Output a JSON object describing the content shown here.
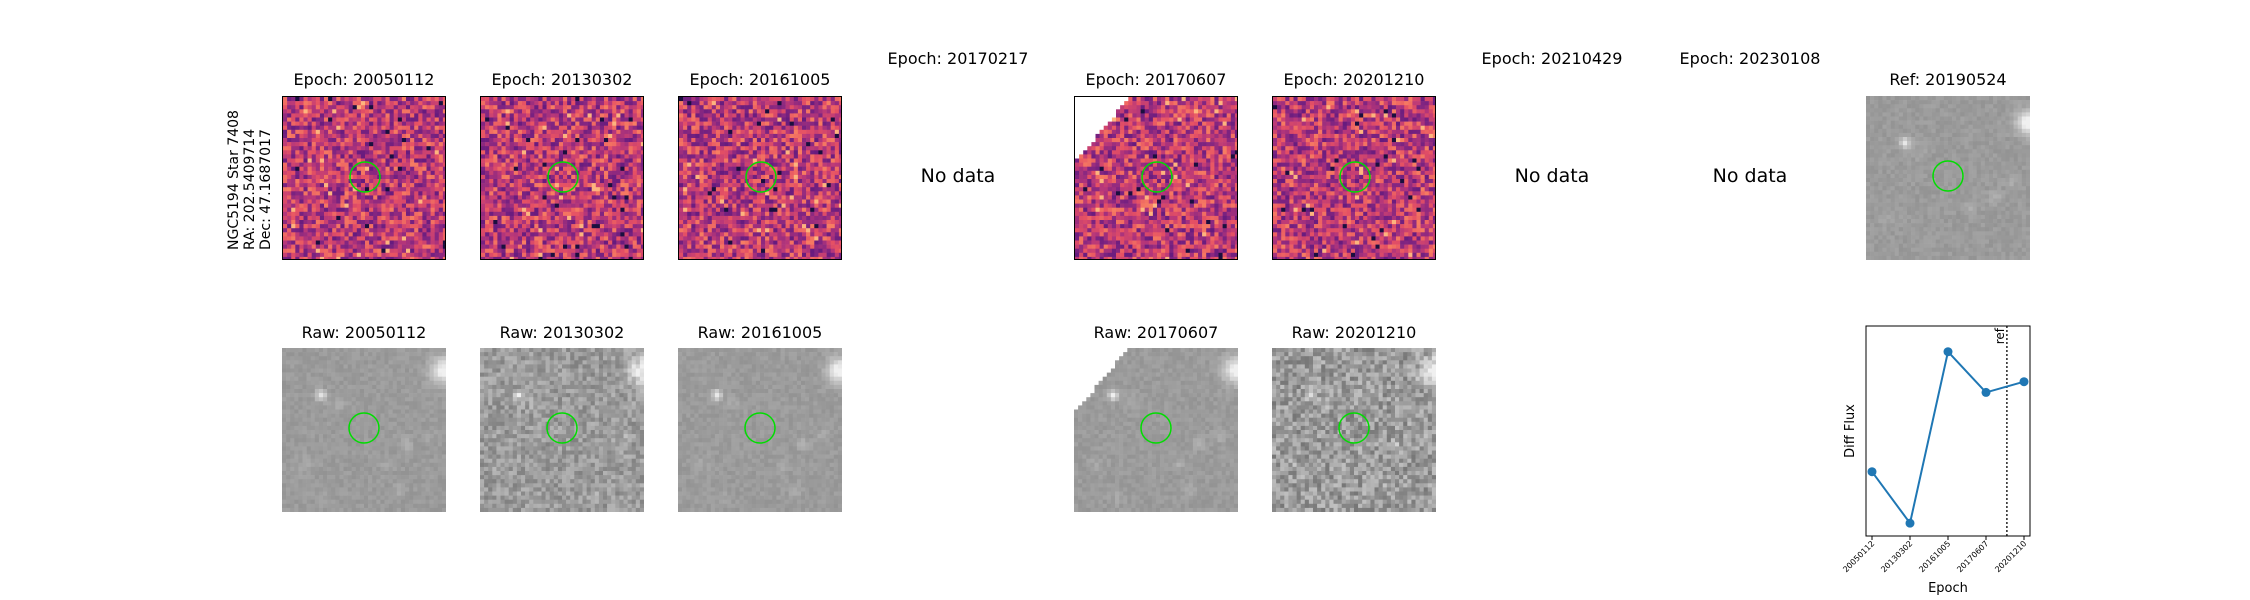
{
  "star_label": {
    "line1": "NGC5194 Star 7408",
    "line2": "RA: 202.5409714",
    "line3": "Dec: 47.1687017"
  },
  "diff_row": [
    {
      "title": "Epoch: 20050112",
      "has_data": true,
      "seed": 11,
      "blank_corner": false
    },
    {
      "title": "Epoch: 20130302",
      "has_data": true,
      "seed": 23,
      "blank_corner": false
    },
    {
      "title": "Epoch: 20161005",
      "has_data": true,
      "seed": 37,
      "blank_corner": false
    },
    {
      "title": "Epoch: 20170217",
      "has_data": false,
      "no_data_text": "No data"
    },
    {
      "title": "Epoch: 20170607",
      "has_data": true,
      "seed": 41,
      "blank_corner": true
    },
    {
      "title": "Epoch: 20201210",
      "has_data": true,
      "seed": 53,
      "blank_corner": false
    },
    {
      "title": "Epoch: 20210429",
      "has_data": false,
      "no_data_text": "No data"
    },
    {
      "title": "Epoch: 20230108",
      "has_data": false,
      "no_data_text": "No data"
    }
  ],
  "ref": {
    "title": "Ref: 20190524"
  },
  "raw_row": [
    {
      "title": "Raw: 20050112",
      "seed": 5,
      "noise": 0.05,
      "blank_corner": false
    },
    {
      "title": "Raw: 20130302",
      "seed": 7,
      "noise": 0.16,
      "blank_corner": false
    },
    {
      "title": "Raw: 20161005",
      "seed": 9,
      "noise": 0.05,
      "blank_corner": false
    },
    {
      "title": "Raw: 20170607",
      "seed": 13,
      "noise": 0.05,
      "blank_corner": true
    },
    {
      "title": "Raw: 20201210",
      "seed": 17,
      "noise": 0.22,
      "blank_corner": false
    }
  ],
  "colors": {
    "circle": "#00dd00",
    "line": "#1f77b4",
    "frame": "#000000"
  },
  "chart_data": {
    "type": "line",
    "x": [
      "20050112",
      "20130302",
      "20161005",
      "20170607",
      "20201210"
    ],
    "y": [
      -1.0,
      -2.2,
      1.8,
      0.85,
      1.1
    ],
    "ylim": [
      -2.5,
      2.4
    ],
    "xlabel": "Epoch",
    "ylabel": "Diff Flux",
    "ref_marker": {
      "label": "ref",
      "position_between": [
        "20170607",
        "20201210"
      ],
      "fraction": 0.55
    },
    "grid": false
  }
}
